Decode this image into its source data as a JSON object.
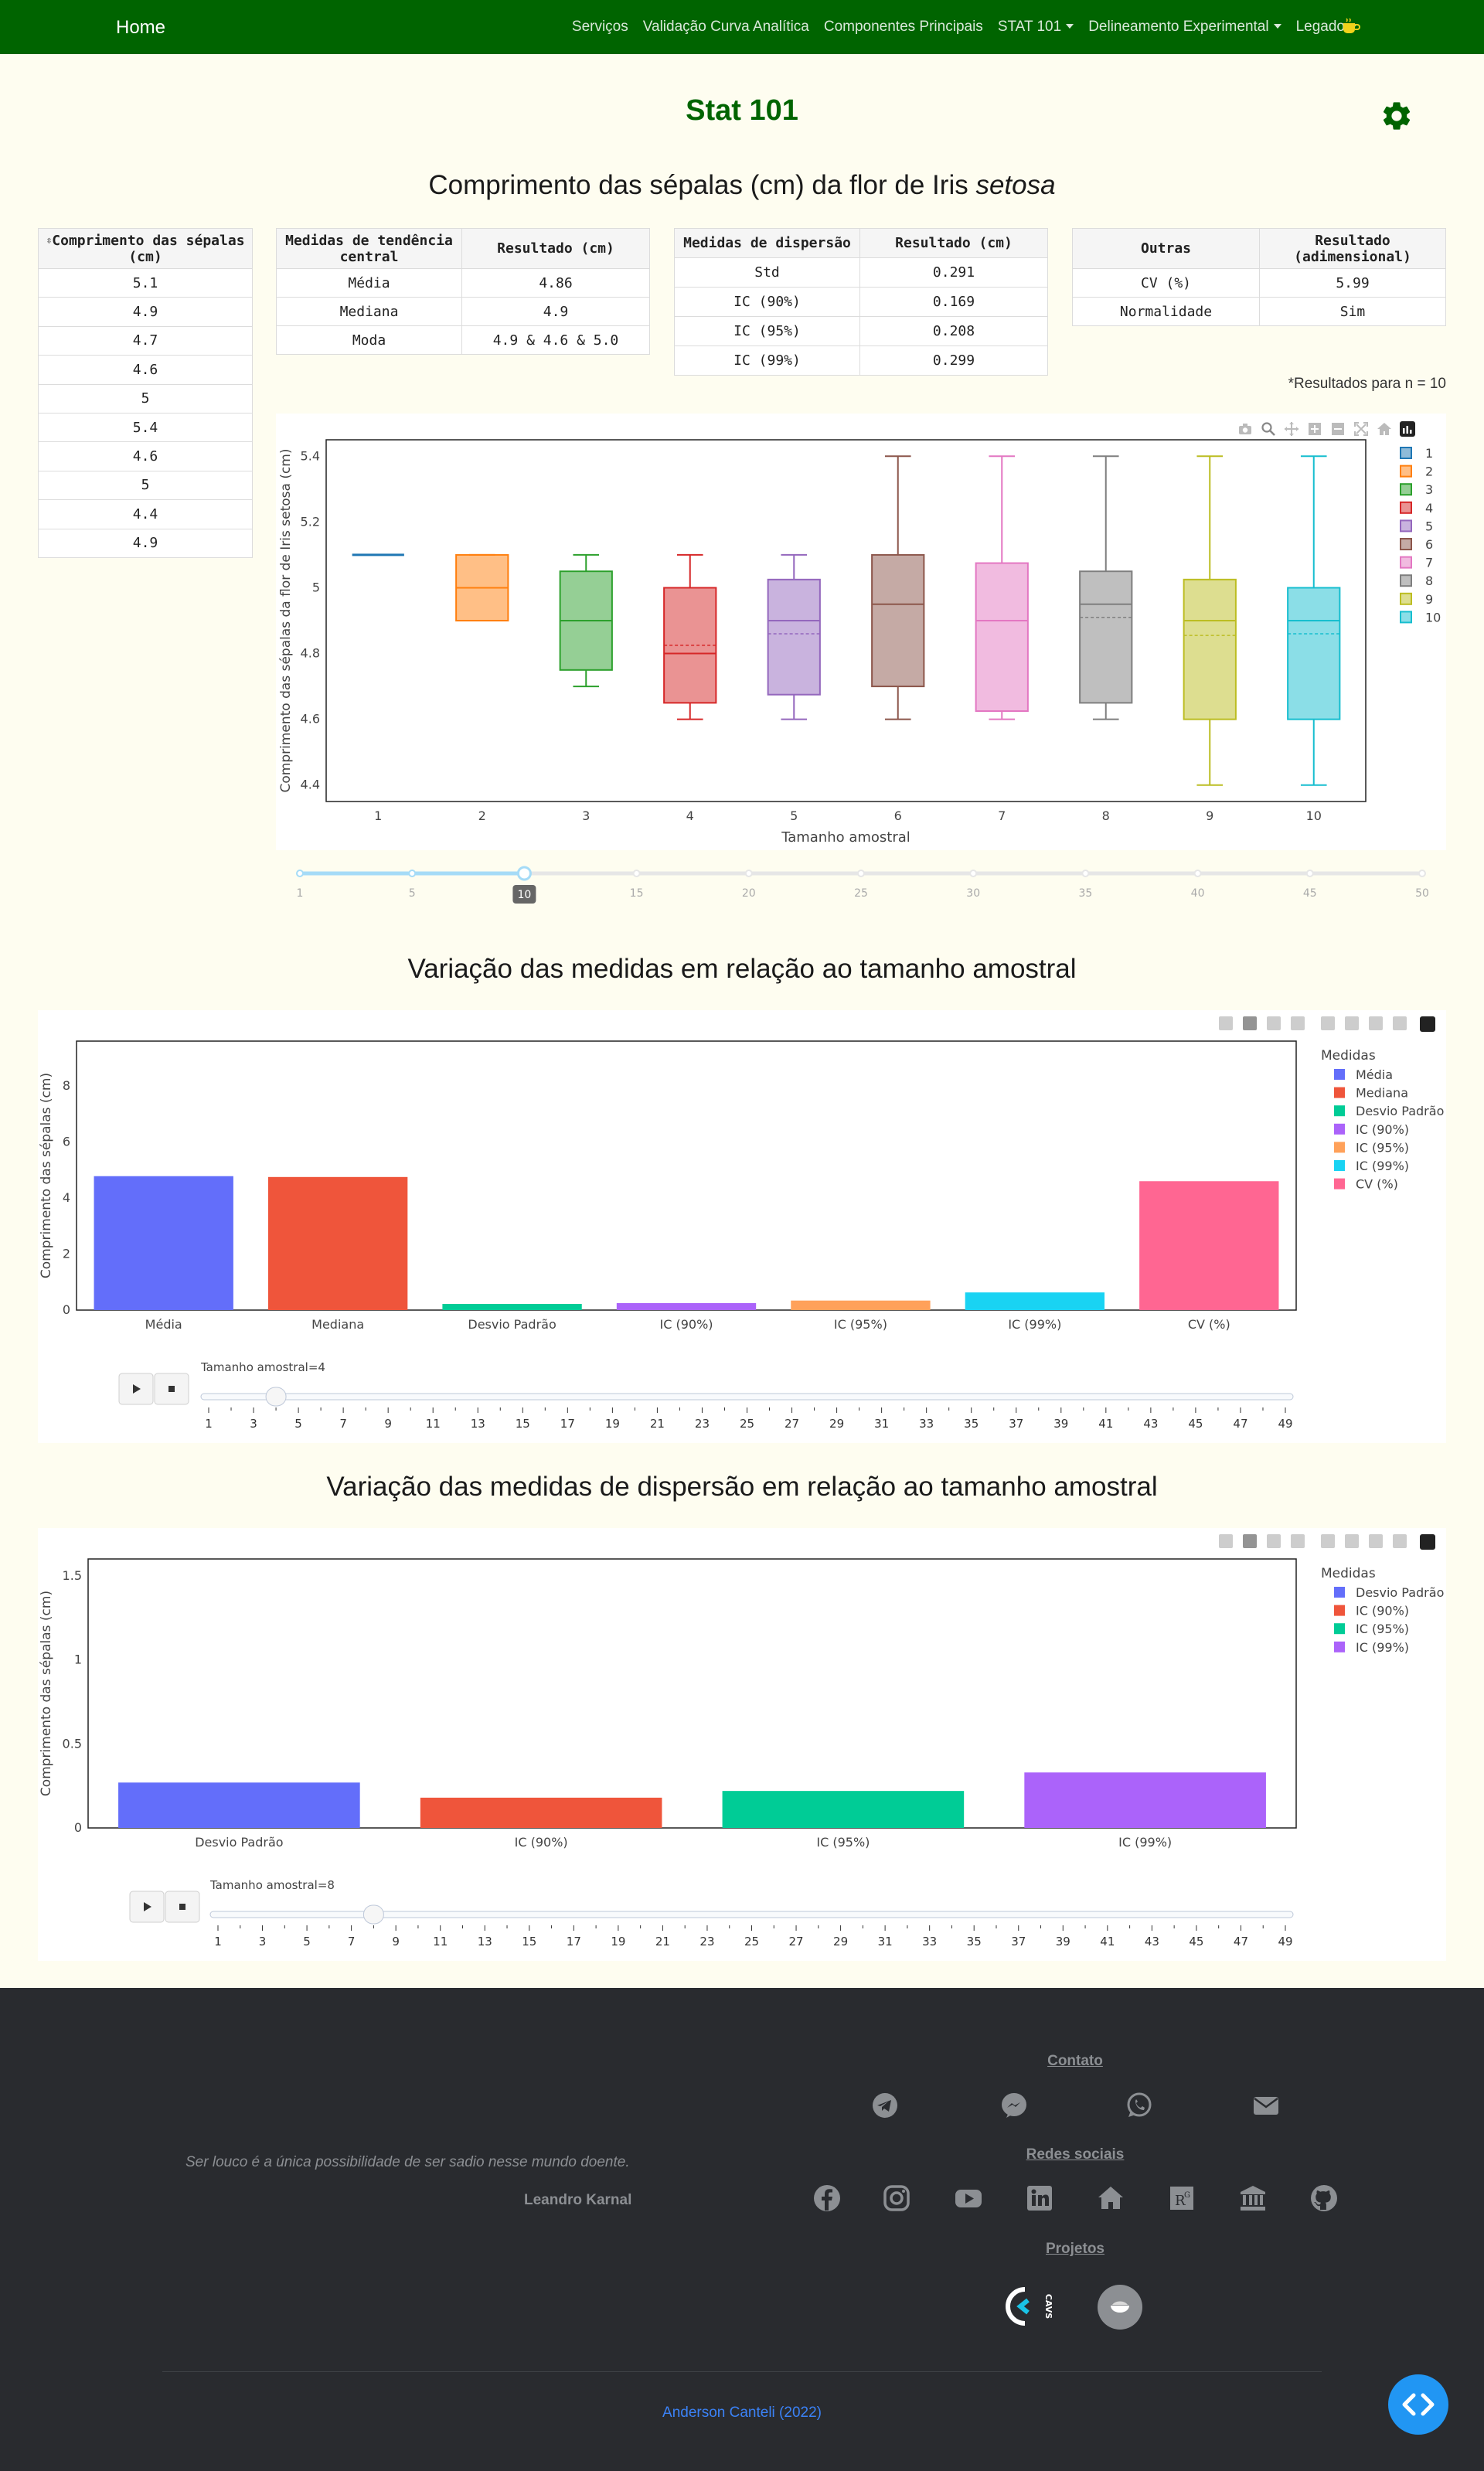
{
  "nav": {
    "brand": "Home",
    "items": [
      "Serviços",
      "Validação Curva Analítica",
      "Componentes Principais",
      "STAT 101",
      "Delineamento Experimental",
      "Legado"
    ],
    "dropdown_flags": [
      false,
      false,
      false,
      true,
      true,
      true
    ]
  },
  "page": {
    "title": "Stat 101"
  },
  "section1": {
    "title_main": "Comprimento das sépalas (cm) da flor de Iris ",
    "title_species": "setosa"
  },
  "table_data": {
    "header": "Comprimento das sépalas (cm)",
    "values": [
      "5.1",
      "4.9",
      "4.7",
      "4.6",
      "5",
      "5.4",
      "4.6",
      "5",
      "4.4",
      "4.9"
    ]
  },
  "table_central": {
    "headers": [
      "Medidas de tendência central",
      "Resultado (cm)"
    ],
    "rows": [
      [
        "Média",
        "4.86"
      ],
      [
        "Mediana",
        "4.9"
      ],
      [
        "Moda",
        "4.9 & 4.6 & 5.0"
      ]
    ]
  },
  "table_dispersion": {
    "headers": [
      "Medidas de dispersão",
      "Resultado (cm)"
    ],
    "rows": [
      [
        "Std",
        "0.291"
      ],
      [
        "IC (90%)",
        "0.169"
      ],
      [
        "IC (95%)",
        "0.208"
      ],
      [
        "IC (99%)",
        "0.299"
      ]
    ]
  },
  "table_other": {
    "headers": [
      "Outras",
      "Resultado (adimensional)"
    ],
    "rows": [
      [
        "CV (%)",
        "5.99"
      ],
      [
        "Normalidade",
        "Sim"
      ]
    ]
  },
  "results_note": "*Resultados para n = 10",
  "slider1": {
    "ticks": [
      "1",
      "5",
      "10",
      "15",
      "20",
      "25",
      "30",
      "35",
      "40",
      "45",
      "50"
    ],
    "value": "10",
    "value_index": 2
  },
  "section2": {
    "title": "Variação das medidas em relação ao tamanho amostral"
  },
  "section3": {
    "title": "Variação das medidas de dispersão em relação ao tamanho amostral"
  },
  "anim1": {
    "label": "Tamanho amostral=4",
    "value": 4,
    "ticks": [
      "1",
      "3",
      "5",
      "7",
      "9",
      "11",
      "13",
      "15",
      "17",
      "19",
      "21",
      "23",
      "25",
      "27",
      "29",
      "31",
      "33",
      "35",
      "37",
      "39",
      "41",
      "43",
      "45",
      "47",
      "49"
    ]
  },
  "anim2": {
    "label": "Tamanho amostral=8",
    "value": 8,
    "ticks": [
      "1",
      "3",
      "5",
      "7",
      "9",
      "11",
      "13",
      "15",
      "17",
      "19",
      "21",
      "23",
      "25",
      "27",
      "29",
      "31",
      "33",
      "35",
      "37",
      "39",
      "41",
      "43",
      "45",
      "47",
      "49"
    ]
  },
  "colors": {
    "nav": "#006400",
    "plotly": [
      "#636efa",
      "#ef553b",
      "#00cc96",
      "#ab63fa",
      "#ffa15a",
      "#19d3f3",
      "#ff6692"
    ],
    "box": [
      "#1f77b4",
      "#ff7f0e",
      "#2ca02c",
      "#d62728",
      "#9467bd",
      "#8c564b",
      "#e377c2",
      "#7f7f7f",
      "#bcbd22",
      "#17becf"
    ]
  },
  "chart_data": [
    {
      "type": "box",
      "xlabel": "Tamanho amostral",
      "ylabel": "Comprimento das sépalas da flor de Iris setosa (cm)",
      "ylim": [
        4.35,
        5.45
      ],
      "yticks": [
        "4.4",
        "4.6",
        "4.8",
        "5",
        "5.2",
        "5.4"
      ],
      "categories": [
        "1",
        "2",
        "3",
        "4",
        "5",
        "6",
        "7",
        "8",
        "9",
        "10"
      ],
      "legend": [
        "1",
        "2",
        "3",
        "4",
        "5",
        "6",
        "7",
        "8",
        "9",
        "10"
      ],
      "boxes": [
        {
          "min": 5.1,
          "q1": 5.1,
          "median": 5.1,
          "q3": 5.1,
          "max": 5.1,
          "mean": 5.1
        },
        {
          "min": 4.9,
          "q1": 4.9,
          "median": 5.0,
          "q3": 5.1,
          "max": 5.1,
          "mean": 5.0
        },
        {
          "min": 4.7,
          "q1": 4.75,
          "median": 4.9,
          "q3": 5.05,
          "max": 5.1,
          "mean": 4.9
        },
        {
          "min": 4.6,
          "q1": 4.65,
          "median": 4.8,
          "q3": 5.0,
          "max": 5.1,
          "mean": 4.825
        },
        {
          "min": 4.6,
          "q1": 4.675,
          "median": 4.9,
          "q3": 5.025,
          "max": 5.1,
          "mean": 4.86
        },
        {
          "min": 4.6,
          "q1": 4.7,
          "median": 4.95,
          "q3": 5.1,
          "max": 5.4,
          "mean": 4.95
        },
        {
          "min": 4.6,
          "q1": 4.625,
          "median": 4.9,
          "q3": 5.075,
          "max": 5.4,
          "mean": 4.9
        },
        {
          "min": 4.6,
          "q1": 4.65,
          "median": 4.95,
          "q3": 5.05,
          "max": 5.4,
          "mean": 4.91
        },
        {
          "min": 4.4,
          "q1": 4.6,
          "median": 4.9,
          "q3": 5.025,
          "max": 5.4,
          "mean": 4.855
        },
        {
          "min": 4.4,
          "q1": 4.6,
          "median": 4.9,
          "q3": 5.0,
          "max": 5.4,
          "mean": 4.86
        }
      ]
    },
    {
      "type": "bar",
      "ylabel": "Comprimento das sépalas (cm)",
      "ylim": [
        0,
        9.6
      ],
      "yticks": [
        "0",
        "2",
        "4",
        "6",
        "8"
      ],
      "legend_title": "Medidas",
      "categories": [
        "Média",
        "Mediana",
        "Desvio Padrão",
        "IC (90%)",
        "IC (95%)",
        "IC (99%)",
        "CV (%)"
      ],
      "values": [
        4.78,
        4.75,
        0.22,
        0.25,
        0.34,
        0.63,
        4.6
      ]
    },
    {
      "type": "bar",
      "ylabel": "Comprimento das sépalas (cm)",
      "ylim": [
        0,
        1.6
      ],
      "yticks": [
        "0",
        "0.5",
        "1",
        "1.5"
      ],
      "legend_title": "Medidas",
      "categories": [
        "Desvio Padrão",
        "IC (90%)",
        "IC (95%)",
        "IC (99%)"
      ],
      "values": [
        0.27,
        0.18,
        0.22,
        0.33
      ]
    }
  ],
  "footer": {
    "quote": "Ser louco é a única possibilidade de ser sadio nesse mundo doente.",
    "author": "Leandro Karnal",
    "contact_title": "Contato",
    "social_title": "Redes sociais",
    "projects_title": "Projetos",
    "copyright": "Anderson Canteli (2022)",
    "cavs_label": "CAVS"
  }
}
